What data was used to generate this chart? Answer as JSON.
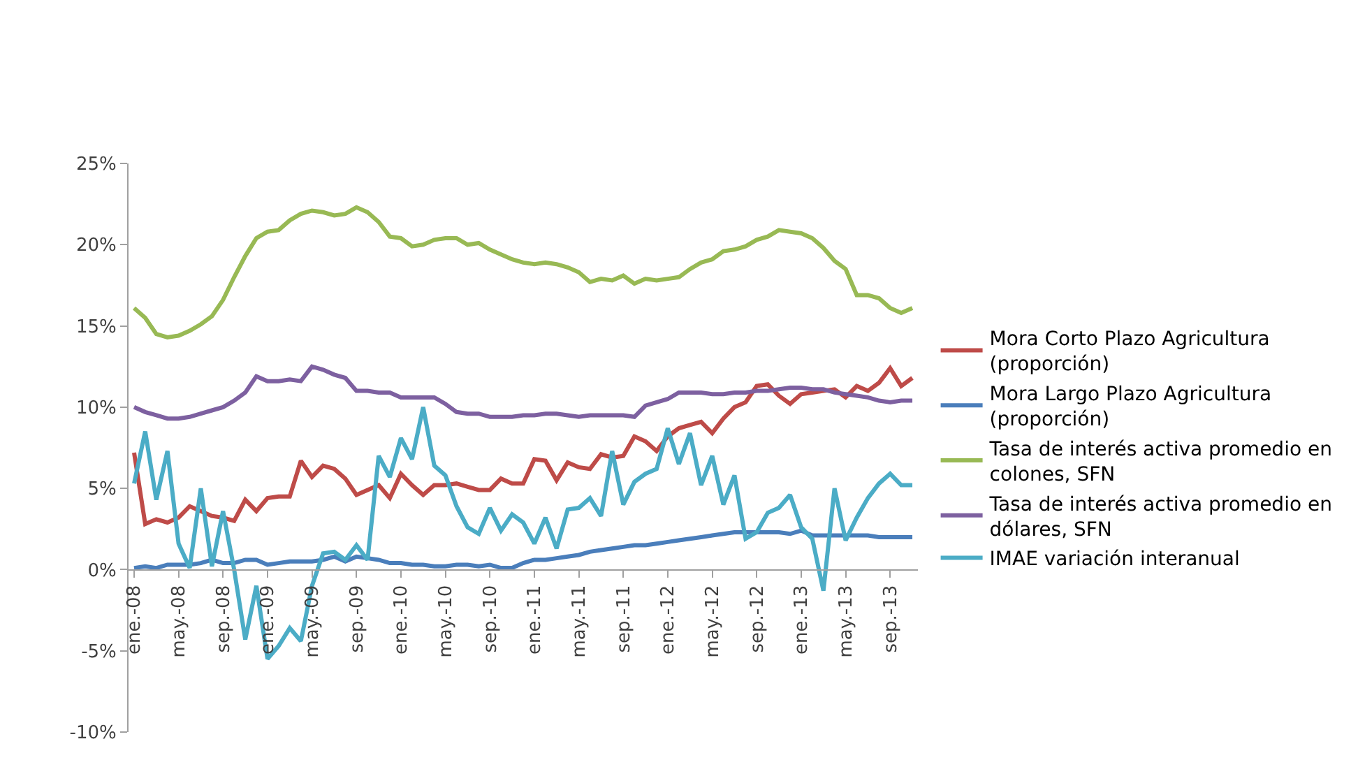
{
  "chart_data": {
    "type": "line",
    "categories": [
      "ene.-08",
      null,
      null,
      null,
      "may.-08",
      null,
      null,
      null,
      "sep.-08",
      null,
      null,
      null,
      "ene.-09",
      null,
      null,
      null,
      "may.-09",
      null,
      null,
      null,
      "sep.-09",
      null,
      null,
      null,
      "ene.-10",
      null,
      null,
      null,
      "may.-10",
      null,
      null,
      null,
      "sep.-10",
      null,
      null,
      null,
      "ene.-11",
      null,
      null,
      null,
      "may.-11",
      null,
      null,
      null,
      "sep.-11",
      null,
      null,
      null,
      "ene.-12",
      null,
      null,
      null,
      "may.-12",
      null,
      null,
      null,
      "sep.-12",
      null,
      null,
      null,
      "ene.-13",
      null,
      null,
      null,
      "may.-13",
      null,
      null,
      null,
      "sep.-13",
      null,
      null
    ],
    "series": [
      {
        "name": "Mora Corto Plazo Agricultura (proporción)",
        "color": "#be4b48",
        "values": [
          7.2,
          2.8,
          3.1,
          2.9,
          3.2,
          3.9,
          3.6,
          3.3,
          3.2,
          3.0,
          4.3,
          3.6,
          4.4,
          4.5,
          4.5,
          6.7,
          5.7,
          6.4,
          6.2,
          5.6,
          4.6,
          4.9,
          5.2,
          4.4,
          5.9,
          5.2,
          4.6,
          5.2,
          5.2,
          5.3,
          5.1,
          4.9,
          4.9,
          5.6,
          5.3,
          5.3,
          6.8,
          6.7,
          5.5,
          6.6,
          6.3,
          6.2,
          7.1,
          6.9,
          7.0,
          8.2,
          7.9,
          7.3,
          8.2,
          8.7,
          8.9,
          9.1,
          8.4,
          9.3,
          10.0,
          10.3,
          11.3,
          11.4,
          10.7,
          10.2,
          10.8,
          10.9,
          11.0,
          11.1,
          10.6,
          11.3,
          11.0,
          11.5,
          12.4,
          11.3,
          11.8
        ]
      },
      {
        "name": "Mora Largo Plazo Agricultura (proporción)",
        "color": "#4a7ebb",
        "values": [
          0.1,
          0.2,
          0.1,
          0.3,
          0.3,
          0.3,
          0.4,
          0.6,
          0.4,
          0.4,
          0.6,
          0.6,
          0.3,
          0.4,
          0.5,
          0.5,
          0.5,
          0.6,
          0.8,
          0.5,
          0.8,
          0.7,
          0.6,
          0.4,
          0.4,
          0.3,
          0.3,
          0.2,
          0.2,
          0.3,
          0.3,
          0.2,
          0.3,
          0.1,
          0.1,
          0.4,
          0.6,
          0.6,
          0.7,
          0.8,
          0.9,
          1.1,
          1.2,
          1.3,
          1.4,
          1.5,
          1.5,
          1.6,
          1.7,
          1.8,
          1.9,
          2.0,
          2.1,
          2.2,
          2.3,
          2.3,
          2.3,
          2.3,
          2.3,
          2.2,
          2.4,
          2.1,
          2.1,
          2.1,
          2.1,
          2.1,
          2.1,
          2.0,
          2.0,
          2.0,
          2.0
        ]
      },
      {
        "name": "Tasa de interés activa promedio en colones, SFN",
        "color": "#98b954",
        "values": [
          16.1,
          15.5,
          14.5,
          14.3,
          14.4,
          14.7,
          15.1,
          15.6,
          16.6,
          18.0,
          19.3,
          20.4,
          20.8,
          20.9,
          21.5,
          21.9,
          22.1,
          22.0,
          21.8,
          21.9,
          22.3,
          22.0,
          21.4,
          20.5,
          20.4,
          19.9,
          20.0,
          20.3,
          20.4,
          20.4,
          20.0,
          20.1,
          19.7,
          19.4,
          19.1,
          18.9,
          18.8,
          18.9,
          18.8,
          18.6,
          18.3,
          17.7,
          17.9,
          17.8,
          18.1,
          17.6,
          17.9,
          17.8,
          17.9,
          18.0,
          18.5,
          18.9,
          19.1,
          19.6,
          19.7,
          19.9,
          20.3,
          20.5,
          20.9,
          20.8,
          20.7,
          20.4,
          19.8,
          19.0,
          18.5,
          16.9,
          16.9,
          16.7,
          16.1,
          15.8,
          16.1
        ]
      },
      {
        "name": "Tasa de interés activa promedio en dólares, SFN",
        "color": "#7d60a0",
        "values": [
          10.0,
          9.7,
          9.5,
          9.3,
          9.3,
          9.4,
          9.6,
          9.8,
          10.0,
          10.4,
          10.9,
          11.9,
          11.6,
          11.6,
          11.7,
          11.6,
          12.5,
          12.3,
          12.0,
          11.8,
          11.0,
          11.0,
          10.9,
          10.9,
          10.6,
          10.6,
          10.6,
          10.6,
          10.2,
          9.7,
          9.6,
          9.6,
          9.4,
          9.4,
          9.4,
          9.5,
          9.5,
          9.6,
          9.6,
          9.5,
          9.4,
          9.5,
          9.5,
          9.5,
          9.5,
          9.4,
          10.1,
          10.3,
          10.5,
          10.9,
          10.9,
          10.9,
          10.8,
          10.8,
          10.9,
          10.9,
          11.0,
          11.0,
          11.1,
          11.2,
          11.2,
          11.1,
          11.1,
          10.9,
          10.8,
          10.7,
          10.6,
          10.4,
          10.3,
          10.4,
          10.4
        ]
      },
      {
        "name": "IMAE variación interanual",
        "color": "#4bacc6",
        "values": [
          5.3,
          8.5,
          4.3,
          7.3,
          1.6,
          0.1,
          5.0,
          0.2,
          3.6,
          0.0,
          -4.3,
          -1.0,
          -5.5,
          -4.7,
          -3.6,
          -4.4,
          -1.0,
          1.0,
          1.1,
          0.6,
          1.5,
          0.6,
          7.0,
          5.7,
          8.1,
          6.8,
          10.0,
          6.4,
          5.8,
          3.9,
          2.6,
          2.2,
          3.8,
          2.4,
          3.4,
          2.9,
          1.6,
          3.2,
          1.3,
          3.7,
          3.8,
          4.4,
          3.3,
          7.3,
          4.0,
          5.4,
          5.9,
          6.2,
          8.7,
          6.5,
          8.4,
          5.2,
          7.0,
          4.0,
          5.8,
          1.9,
          2.3,
          3.5,
          3.8,
          4.6,
          2.6,
          1.9,
          -1.3,
          5.0,
          1.8,
          3.2,
          4.4,
          5.3,
          5.9,
          5.2,
          5.2
        ]
      }
    ],
    "ylim": [
      -10,
      25
    ],
    "yticks": [
      {
        "value": -10,
        "label": "-10%"
      },
      {
        "value": -5,
        "label": "-5%"
      },
      {
        "value": 0,
        "label": "0%"
      },
      {
        "value": 5,
        "label": "5%"
      },
      {
        "value": 10,
        "label": "10%"
      },
      {
        "value": 15,
        "label": "15%"
      },
      {
        "value": 20,
        "label": "20%"
      },
      {
        "value": 25,
        "label": "25%"
      }
    ],
    "legend": "right",
    "marker": "none",
    "line_style": "solid"
  }
}
